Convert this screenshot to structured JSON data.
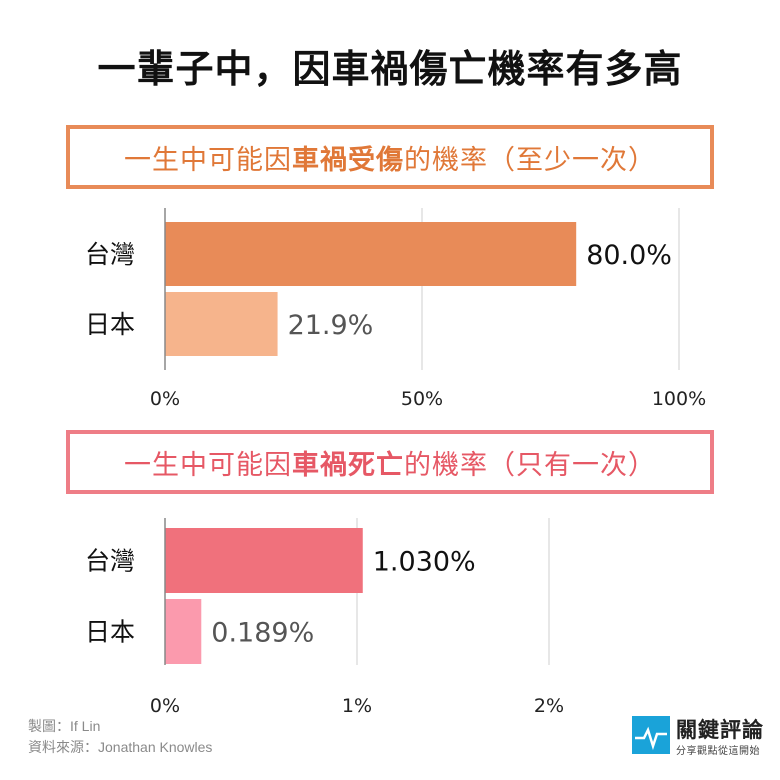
{
  "title": "一輩子中，因車禍傷亡機率有多高",
  "chart_data": [
    {
      "type": "bar",
      "orientation": "horizontal",
      "title_parts": [
        "一生中可能因",
        "車禍受傷",
        "的機率（至少一次）"
      ],
      "categories": [
        "台灣",
        "日本"
      ],
      "values": [
        80.0,
        21.9
      ],
      "value_labels": [
        "80.0%",
        "21.9%"
      ],
      "colors": [
        "#e88b58",
        "#f6b48c"
      ],
      "xlim": [
        0,
        100
      ],
      "ticks": [
        0,
        50,
        100
      ],
      "tick_labels": [
        "0%",
        "50%",
        "100%"
      ],
      "grid": true
    },
    {
      "type": "bar",
      "orientation": "horizontal",
      "title_parts": [
        "一生中可能因",
        "車禍死亡",
        "的機率（只有一次）"
      ],
      "categories": [
        "台灣",
        "日本"
      ],
      "values": [
        1.03,
        0.189
      ],
      "value_labels": [
        "1.030%",
        "0.189%"
      ],
      "colors": [
        "#f0717c",
        "#fb9aad"
      ],
      "xlim": [
        0,
        2
      ],
      "ticks": [
        0,
        1,
        2
      ],
      "tick_labels": [
        "0%",
        "1%",
        "2%"
      ],
      "grid": true
    }
  ],
  "footer": {
    "maker": "製圖：If Lin",
    "source": "資料來源：Jonathan Knowles"
  },
  "logo": {
    "name": "關鍵評論",
    "tagline": "分享觀點從這開始",
    "color": "#1aa3d9"
  }
}
